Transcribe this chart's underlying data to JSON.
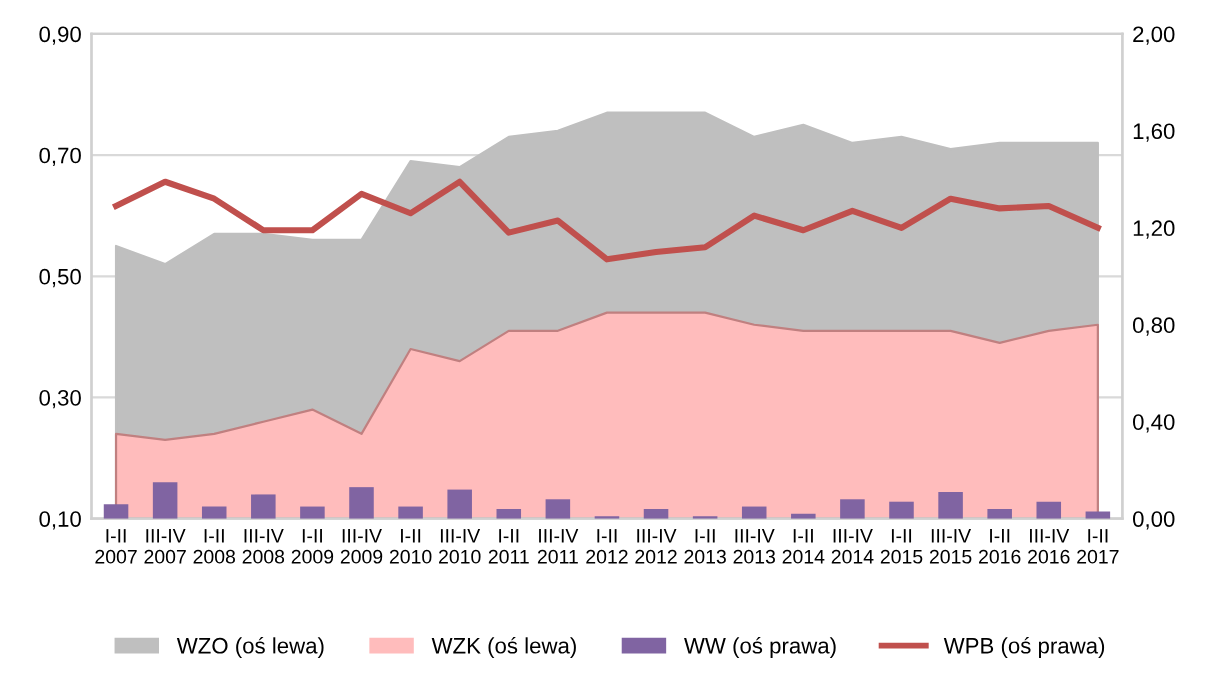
{
  "chart_data": {
    "type": "area",
    "categories": [
      "I-II\n2007",
      "III-IV\n2007",
      "I-II\n2008",
      "III-IV\n2008",
      "I-II\n2009",
      "III-IV\n2009",
      "I-II\n2010",
      "III-IV\n2010",
      "I-II\n2011",
      "III-IV\n2011",
      "I-II\n2012",
      "III-IV\n2012",
      "I-II\n2013",
      "III-IV\n2013",
      "I-II\n2014",
      "III-IV\n2014",
      "I-II\n2015",
      "III-IV\n2015",
      "I-II\n2016",
      "III-IV\n2016",
      "I-II\n2017"
    ],
    "series": [
      {
        "name": "WZO (oś lewa)",
        "color": "#bfbfbf",
        "values": [
          0.55,
          0.52,
          0.57,
          0.57,
          0.56,
          0.56,
          0.69,
          0.68,
          0.73,
          0.74,
          0.77,
          0.77,
          0.77,
          0.73,
          0.75,
          0.72,
          0.73,
          0.71,
          0.72,
          0.72,
          0.72
        ]
      },
      {
        "name": "WZK (oś lewa)",
        "color": "#ffbcbc",
        "values": [
          0.24,
          0.23,
          0.24,
          0.26,
          0.28,
          0.24,
          0.38,
          0.36,
          0.41,
          0.41,
          0.44,
          0.44,
          0.44,
          0.42,
          0.41,
          0.41,
          0.41,
          0.41,
          0.39,
          0.41,
          0.42
        ]
      },
      {
        "name": "WW (oś prawa)",
        "type": "bar",
        "axis": "y2",
        "color": "#8064a2",
        "values": [
          0.06,
          0.15,
          0.05,
          0.1,
          0.05,
          0.13,
          0.05,
          0.12,
          0.04,
          0.08,
          0.01,
          0.04,
          0.01,
          0.05,
          0.02,
          0.08,
          0.07,
          0.11,
          0.04,
          0.07,
          0.03
        ]
      },
      {
        "name": "WPB (oś prawa)",
        "type": "line",
        "axis": "y2",
        "color": "#c0504d",
        "values": [
          1.29,
          1.39,
          1.32,
          1.19,
          1.19,
          1.34,
          1.26,
          1.39,
          1.18,
          1.23,
          1.07,
          1.1,
          1.12,
          1.25,
          1.19,
          1.27,
          1.2,
          1.32,
          1.28,
          1.29,
          1.2
        ]
      }
    ],
    "ylim": [
      0.1,
      0.9
    ],
    "yticks": [
      {
        "value": 0.1,
        "label": "0,10"
      },
      {
        "value": 0.3,
        "label": "0,30"
      },
      {
        "value": 0.5,
        "label": "0,50"
      },
      {
        "value": 0.7,
        "label": "0,70"
      },
      {
        "value": 0.9,
        "label": "0,90"
      }
    ],
    "y2lim": [
      0,
      2.0
    ],
    "y2ticks": [
      {
        "value": 0,
        "label": "0,00"
      },
      {
        "value": 0.4,
        "label": "0,40"
      },
      {
        "value": 0.8,
        "label": "0,80"
      },
      {
        "value": 1.2,
        "label": "1,20"
      },
      {
        "value": 1.6,
        "label": "1,60"
      },
      {
        "value": 2.0,
        "label": "2,00"
      }
    ],
    "grid": "y",
    "legend": "bottom",
    "marker": "none",
    "line_style": "solid"
  }
}
